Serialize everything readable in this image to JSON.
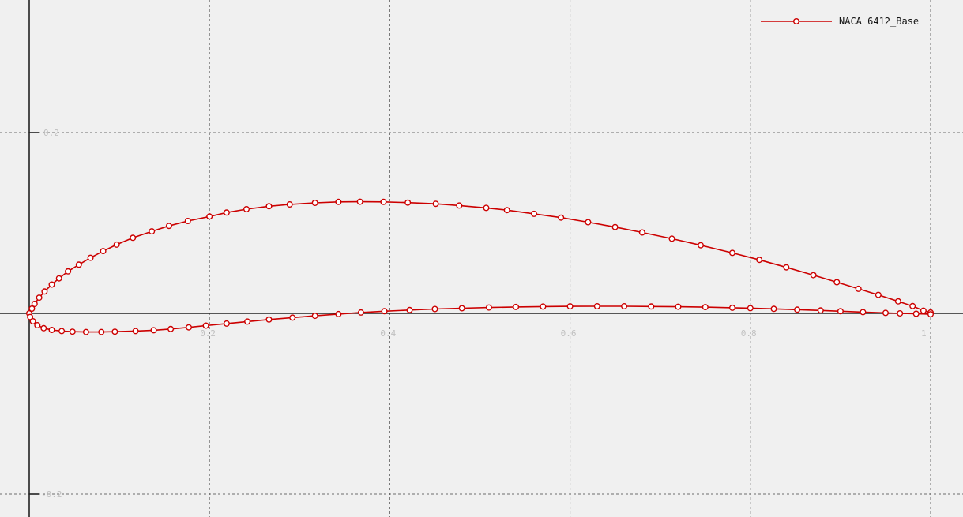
{
  "chart_data": {
    "type": "line",
    "title": "",
    "xlabel": "",
    "ylabel": "",
    "xlim": [
      0,
      1.0
    ],
    "ylim": [
      -0.2,
      0.2
    ],
    "grid": true,
    "legend_position": "top-right",
    "x_ticks": [
      {
        "value": 0.2,
        "label": "0.2"
      },
      {
        "value": 0.4,
        "label": "0.4"
      },
      {
        "value": 0.6,
        "label": "0.6"
      },
      {
        "value": 0.8,
        "label": "0.8"
      },
      {
        "value": 1.0,
        "label": "1"
      }
    ],
    "y_ticks": [
      {
        "value": 0.2,
        "label": "0.2"
      },
      {
        "value": -0.2,
        "label": "-0.2"
      }
    ],
    "series": [
      {
        "name": "NACA 6412_Base",
        "color": "#cc0000",
        "marker": "circle",
        "points": [
          [
            1.0,
            0.001
          ],
          [
            0.992,
            0.003
          ],
          [
            0.98,
            0.008
          ],
          [
            0.964,
            0.0133
          ],
          [
            0.942,
            0.0204
          ],
          [
            0.92,
            0.0272
          ],
          [
            0.896,
            0.0345
          ],
          [
            0.87,
            0.0423
          ],
          [
            0.84,
            0.0509
          ],
          [
            0.81,
            0.0592
          ],
          [
            0.78,
            0.0669
          ],
          [
            0.745,
            0.0754
          ],
          [
            0.713,
            0.0826
          ],
          [
            0.68,
            0.0895
          ],
          [
            0.65,
            0.0955
          ],
          [
            0.62,
            0.1009
          ],
          [
            0.59,
            0.1059
          ],
          [
            0.56,
            0.1101
          ],
          [
            0.53,
            0.1142
          ],
          [
            0.507,
            0.1167
          ],
          [
            0.477,
            0.1193
          ],
          [
            0.451,
            0.1212
          ],
          [
            0.42,
            0.1225
          ],
          [
            0.393,
            0.1233
          ],
          [
            0.367,
            0.1235
          ],
          [
            0.343,
            0.1233
          ],
          [
            0.317,
            0.1223
          ],
          [
            0.289,
            0.1205
          ],
          [
            0.266,
            0.1185
          ],
          [
            0.241,
            0.1153
          ],
          [
            0.219,
            0.1115
          ],
          [
            0.2,
            0.1072
          ],
          [
            0.176,
            0.1022
          ],
          [
            0.155,
            0.0968
          ],
          [
            0.136,
            0.0907
          ],
          [
            0.115,
            0.0836
          ],
          [
            0.097,
            0.0761
          ],
          [
            0.082,
            0.0689
          ],
          [
            0.068,
            0.0615
          ],
          [
            0.055,
            0.0539
          ],
          [
            0.043,
            0.0465
          ],
          [
            0.033,
            0.0387
          ],
          [
            0.025,
            0.0319
          ],
          [
            0.017,
            0.0242
          ],
          [
            0.011,
            0.0174
          ],
          [
            0.006,
            0.0105
          ],
          [
            0.003,
            0.0052
          ],
          [
            0.0,
            0.0
          ],
          [
            0.001,
            -0.004
          ],
          [
            0.004,
            -0.0087
          ],
          [
            0.009,
            -0.0131
          ],
          [
            0.016,
            -0.0164
          ],
          [
            0.025,
            -0.0183
          ],
          [
            0.036,
            -0.0196
          ],
          [
            0.048,
            -0.0203
          ],
          [
            0.063,
            -0.0206
          ],
          [
            0.08,
            -0.0206
          ],
          [
            0.095,
            -0.0203
          ],
          [
            0.118,
            -0.0196
          ],
          [
            0.138,
            -0.0187
          ],
          [
            0.157,
            -0.0173
          ],
          [
            0.177,
            -0.0155
          ],
          [
            0.196,
            -0.0135
          ],
          [
            0.219,
            -0.0113
          ],
          [
            0.242,
            -0.0091
          ],
          [
            0.266,
            -0.0068
          ],
          [
            0.292,
            -0.0047
          ],
          [
            0.317,
            -0.0027
          ],
          [
            0.343,
            -0.0008
          ],
          [
            0.368,
            0.001
          ],
          [
            0.394,
            0.0024
          ],
          [
            0.422,
            0.0037
          ],
          [
            0.45,
            0.0048
          ],
          [
            0.48,
            0.0057
          ],
          [
            0.51,
            0.0065
          ],
          [
            0.54,
            0.0071
          ],
          [
            0.57,
            0.0075
          ],
          [
            0.6,
            0.0078
          ],
          [
            0.63,
            0.0079
          ],
          [
            0.66,
            0.0079
          ],
          [
            0.69,
            0.0076
          ],
          [
            0.72,
            0.0073
          ],
          [
            0.75,
            0.0069
          ],
          [
            0.78,
            0.0062
          ],
          [
            0.8,
            0.0058
          ],
          [
            0.826,
            0.005
          ],
          [
            0.852,
            0.0041
          ],
          [
            0.878,
            0.0032
          ],
          [
            0.9,
            0.0024
          ],
          [
            0.925,
            0.0014
          ],
          [
            0.95,
            0.0005
          ],
          [
            0.966,
            0.0
          ],
          [
            0.984,
            -0.0004
          ],
          [
            1.0,
            -0.001
          ]
        ]
      }
    ]
  }
}
